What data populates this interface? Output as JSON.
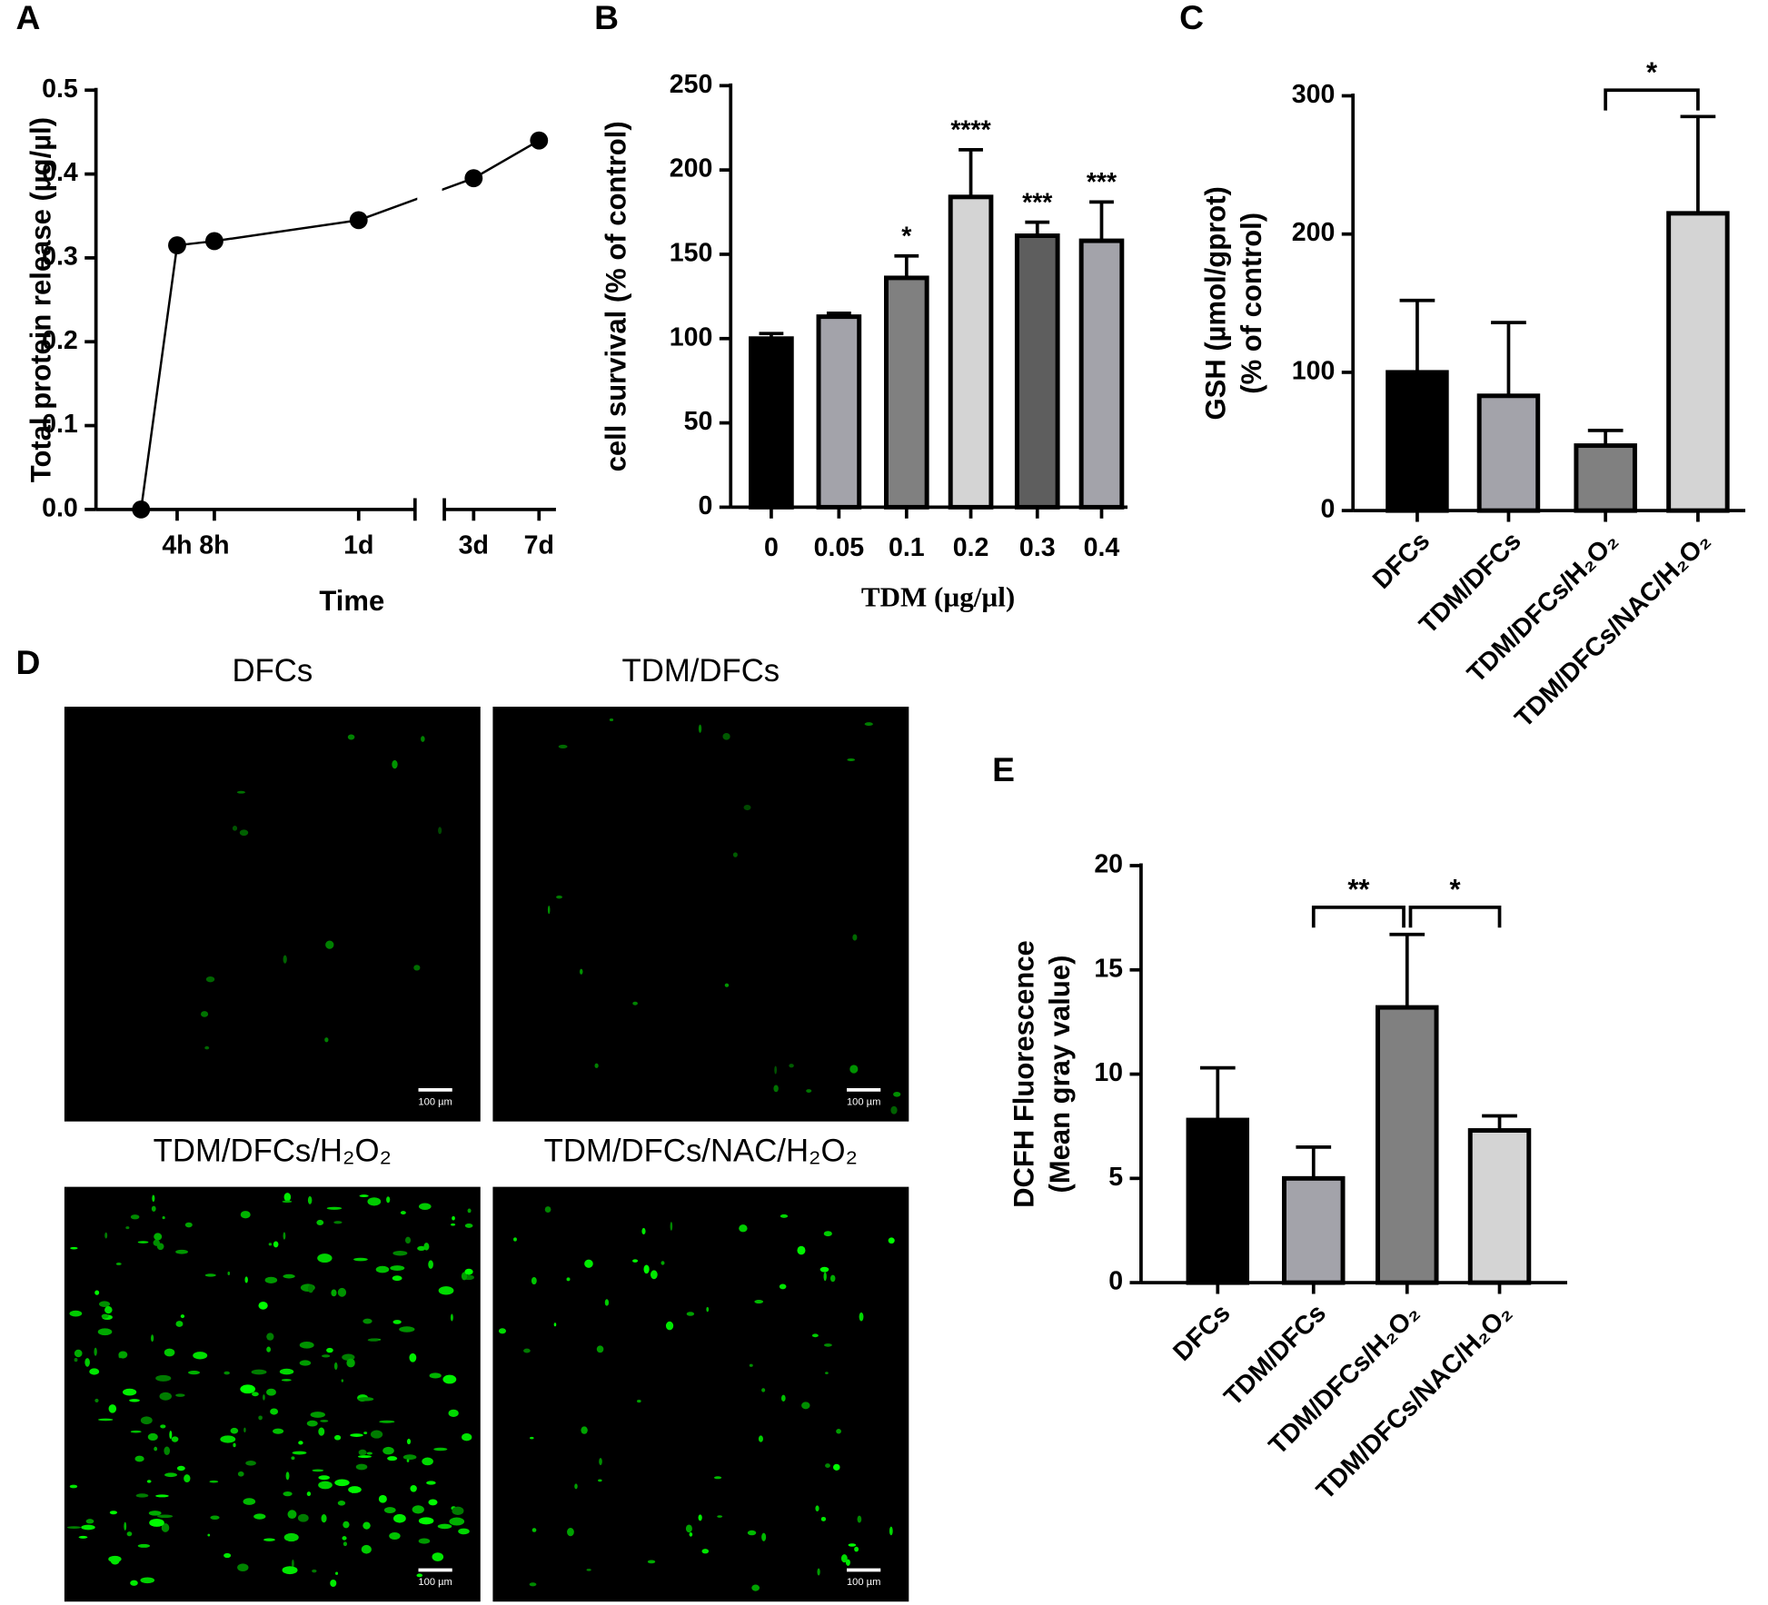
{
  "chart_data": [
    {
      "type": "line",
      "label": "A",
      "ylabel": "Total protein release (µg/µl)",
      "xlabel": "Time",
      "categories": [
        null,
        "4h",
        "8h",
        "1d",
        "3d",
        "7d"
      ],
      "values": [
        0,
        0.315,
        0.32,
        0.345,
        0.395,
        0.44
      ],
      "color": "#000000",
      "ylim": [
        0,
        0.5
      ],
      "yticks": [
        {
          "value": 0,
          "label": "0.0"
        },
        0.1,
        0.2,
        0.3,
        0.4,
        0.5
      ]
    },
    {
      "type": "bar",
      "label": "B",
      "ylabel": "cell survival (% of control)",
      "xlabel": "TDM (µg/µl)",
      "categories": [
        "0",
        "0.05",
        "0.1",
        "0.2",
        "0.3",
        "0.4"
      ],
      "values": [
        100,
        113,
        136,
        184,
        161,
        158
      ],
      "errors": [
        3,
        2,
        13,
        28,
        8,
        23
      ],
      "colors": [
        "#000000",
        "#a3a3aa",
        "#808080",
        "#d4d4d4",
        "#5e5e5e",
        "#a3a3aa"
      ],
      "significance": [
        null,
        null,
        "*",
        "****",
        "***",
        "***"
      ],
      "ylim": [
        0,
        250
      ],
      "yticks": [
        0,
        50,
        100,
        150,
        200,
        250
      ]
    },
    {
      "type": "bar",
      "label": "C",
      "ylabel": [
        "GSH (µmol/gprot)",
        "(% of control)"
      ],
      "categories": [
        "DFCs",
        "TDM/DFCs",
        "TDM/DFCs/H₂O₂",
        "TDM/DFCs/NAC/H₂O₂"
      ],
      "values": [
        100,
        83,
        47,
        215
      ],
      "errors": [
        52,
        53,
        11,
        70
      ],
      "colors": [
        "#000000",
        "#a3a3aa",
        "#808080",
        "#d4d4d4"
      ],
      "brackets": [
        {
          "label": "*",
          "between": [
            "TDM/DFCs/H₂O₂",
            "TDM/DFCs/NAC/H₂O₂"
          ]
        }
      ],
      "ylim": [
        0,
        300
      ],
      "yticks": [
        0,
        100,
        200,
        300
      ]
    },
    {
      "type": "bar",
      "label": "E",
      "ylabel": [
        "DCFH Fluorescence",
        "(Mean gray value)"
      ],
      "categories": [
        "DFCs",
        "TDM/DFCs",
        "TDM/DFCs/H₂O₂",
        "TDM/DFCs/NAC/H₂O₂"
      ],
      "values": [
        7.8,
        5.0,
        13.2,
        7.3
      ],
      "errors": [
        2.5,
        1.5,
        3.5,
        0.7
      ],
      "colors": [
        "#000000",
        "#a3a3aa",
        "#808080",
        "#d4d4d4"
      ],
      "brackets": [
        {
          "label": "**",
          "between": [
            "TDM/DFCs",
            "TDM/DFCs/H₂O₂"
          ]
        },
        {
          "label": "*",
          "between": [
            "TDM/DFCs/H₂O₂",
            "TDM/DFCs/NAC/H₂O₂"
          ]
        }
      ],
      "ylim": [
        0,
        20
      ],
      "yticks": [
        0,
        5,
        10,
        15,
        20
      ]
    }
  ],
  "panel_d": {
    "label": "D",
    "images": [
      {
        "title": "DFCs",
        "scale_bar": "100 µm"
      },
      {
        "title": "TDM/DFCs",
        "scale_bar": "100 µm"
      },
      {
        "title": "TDM/DFCs/H₂O₂",
        "scale_bar": "100 µm"
      },
      {
        "title": "TDM/DFCs/NAC/H₂O₂",
        "scale_bar": "100 µm"
      }
    ]
  }
}
